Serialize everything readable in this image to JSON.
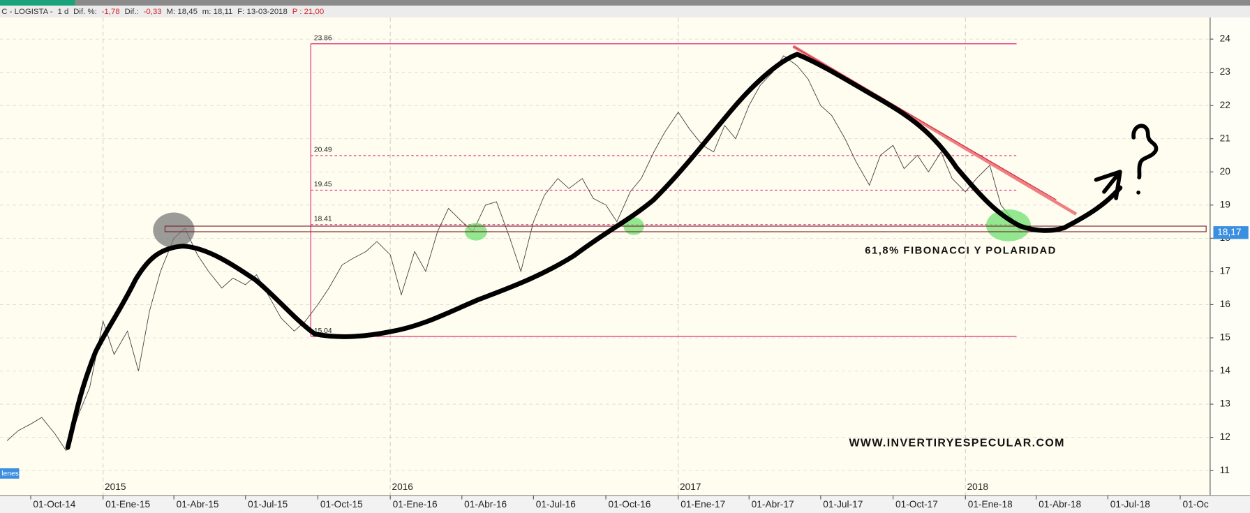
{
  "header": {
    "items": [
      "C - LOGISTA -",
      "1 d",
      "Dif. %:",
      "-1,78",
      "Dif.:",
      "-0,33",
      "M: 18,45",
      "m: 18,11",
      "F: 13-03-2018",
      "P : 21,00"
    ]
  },
  "chart_data": {
    "type": "line",
    "color": "#444444",
    "x": [
      "01-Sep-14",
      "15-Sep-14",
      "01-Oct-14",
      "15-Oct-14",
      "01-Nov-14",
      "15-Nov-14",
      "01-Dic-14",
      "15-Dic-14",
      "01-Ene-15",
      "15-Ene-15",
      "01-Feb-15",
      "15-Feb-15",
      "01-Mar-15",
      "15-Mar-15",
      "01-Abr-15",
      "15-Abr-15",
      "01-May-15",
      "15-May-15",
      "01-Jun-15",
      "15-Jun-15",
      "01-Jul-15",
      "15-Jul-15",
      "01-Ago-15",
      "15-Ago-15",
      "01-Sep-15",
      "15-Sep-15",
      "01-Oct-15",
      "15-Oct-15",
      "01-Nov-15",
      "15-Nov-15",
      "01-Dic-15",
      "15-Dic-15",
      "01-Ene-16",
      "15-Ene-16",
      "01-Feb-16",
      "15-Feb-16",
      "01-Mar-16",
      "15-Mar-16",
      "01-Abr-16",
      "15-Abr-16",
      "01-May-16",
      "15-May-16",
      "01-Jun-16",
      "15-Jun-16",
      "01-Jul-16",
      "15-Jul-16",
      "01-Ago-16",
      "15-Ago-16",
      "01-Sep-16",
      "15-Sep-16",
      "01-Oct-16",
      "15-Oct-16",
      "01-Nov-16",
      "15-Nov-16",
      "01-Dic-16",
      "15-Dic-16",
      "01-Ene-17",
      "15-Ene-17",
      "01-Feb-17",
      "15-Feb-17",
      "01-Mar-17",
      "15-Mar-17",
      "01-Abr-17",
      "15-Abr-17",
      "01-May-17",
      "15-May-17",
      "01-Jun-17",
      "15-Jun-17",
      "01-Jul-17",
      "15-Jul-17",
      "01-Ago-17",
      "15-Ago-17",
      "01-Sep-17",
      "15-Sep-17",
      "01-Oct-17",
      "15-Oct-17",
      "01-Nov-17",
      "15-Nov-17",
      "01-Dic-17",
      "15-Dic-17",
      "01-Ene-18",
      "15-Ene-18",
      "01-Feb-18",
      "15-Feb-18",
      "01-Mar-18",
      "13-Mar-18"
    ],
    "values": [
      11.9,
      12.2,
      12.4,
      12.6,
      12.1,
      11.6,
      12.7,
      13.5,
      15.5,
      14.5,
      15.2,
      14.0,
      15.8,
      17.0,
      18.0,
      18.3,
      17.5,
      17.0,
      16.5,
      16.8,
      16.6,
      16.9,
      16.2,
      15.6,
      15.2,
      15.5,
      16.0,
      16.5,
      17.2,
      17.4,
      17.6,
      17.9,
      17.5,
      16.3,
      17.6,
      17.0,
      18.2,
      18.9,
      18.5,
      18.2,
      19.0,
      19.1,
      18.0,
      17.0,
      18.5,
      19.3,
      19.8,
      19.5,
      19.8,
      19.2,
      19.0,
      18.5,
      19.4,
      19.8,
      20.6,
      21.2,
      21.8,
      21.3,
      20.8,
      20.6,
      21.4,
      21.0,
      22.0,
      22.6,
      23.0,
      23.5,
      23.2,
      22.8,
      22.0,
      21.7,
      21.0,
      20.3,
      19.6,
      20.5,
      20.8,
      20.1,
      20.5,
      20.0,
      20.6,
      19.8,
      19.4,
      19.8,
      20.2,
      19.0,
      18.6,
      18.17
    ],
    "xlim": [
      "23-Ago-14",
      "08-Nov-18"
    ],
    "xticks": [
      "01-Oct-14",
      "01-Ene-15",
      "01-Abr-15",
      "01-Jul-15",
      "01-Oct-15",
      "01-Ene-16",
      "01-Abr-16",
      "01-Jul-16",
      "01-Oct-16",
      "01-Ene-17",
      "01-Abr-17",
      "01-Jul-17",
      "01-Oct-17",
      "01-Ene-18",
      "01-Abr-18",
      "01-Jul-18",
      {
        "value": "01-Oct-18",
        "label": "01-Oc"
      }
    ],
    "year_labels": [
      "2015",
      "2016",
      "2017",
      "2018"
    ],
    "ylim": [
      10.25,
      24.65
    ],
    "yticks": [
      11,
      12,
      13,
      14,
      15,
      16,
      17,
      18,
      19,
      20,
      21,
      22,
      23,
      24
    ],
    "grid": true,
    "last_price": {
      "value": 18.17,
      "label": "18,17"
    },
    "fibonacci": {
      "color": "#e0207a",
      "start": "22-Sep-15",
      "end": "07-Mar-18",
      "levels": [
        23.86,
        20.49,
        19.45,
        18.41,
        15.04
      ]
    },
    "annotations": [
      "61,8% FIBONACCI Y POLARIDAD",
      "WWW.INVERTIRYESPECULAR.COM"
    ],
    "volume_tag": "lenes"
  }
}
